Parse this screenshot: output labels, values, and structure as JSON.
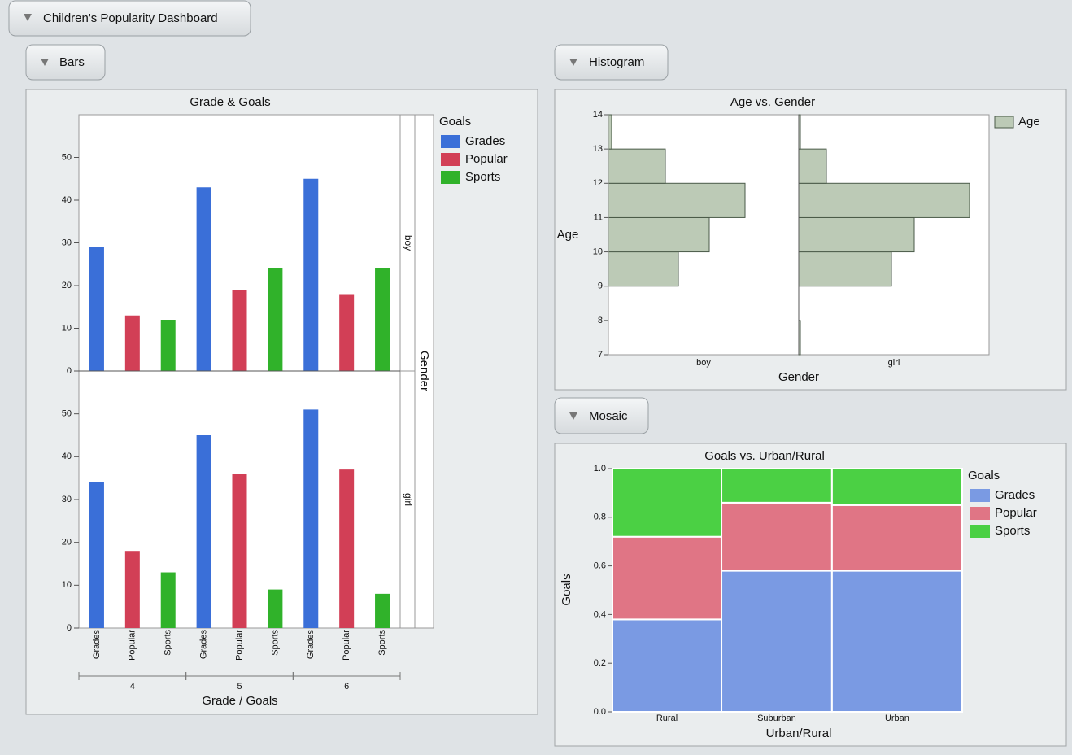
{
  "dashboard": {
    "title": "Children's Popularity Dashboard"
  },
  "sections": [
    "Bars",
    "Histogram",
    "Mosaic"
  ],
  "chart_data": [
    {
      "type": "bar",
      "title": "Grade & Goals",
      "xlabel": "Grade / Goals",
      "facet_label": "Gender",
      "legend_title": "Goals",
      "groups": [
        "4",
        "5",
        "6"
      ],
      "series": [
        {
          "name": "Grades",
          "color": "#3a6fd8"
        },
        {
          "name": "Popular",
          "color": "#d23f56"
        },
        {
          "name": "Sports",
          "color": "#30b22a"
        }
      ],
      "panels": [
        {
          "label": "boy",
          "values": [
            [
              29,
              43,
              45
            ],
            [
              13,
              19,
              18
            ],
            [
              12,
              24,
              24
            ]
          ]
        },
        {
          "label": "girl",
          "values": [
            [
              34,
              45,
              51
            ],
            [
              18,
              36,
              37
            ],
            [
              13,
              9,
              8
            ]
          ]
        }
      ],
      "ylim": [
        0,
        60
      ],
      "yticks": [
        0,
        10,
        20,
        30,
        40,
        50
      ]
    },
    {
      "type": "histogram",
      "title": "Age vs. Gender",
      "xlabel": "Gender",
      "ylabel": "Age",
      "legend_title": "Age",
      "color": "#bccab6",
      "bins": [
        7,
        8,
        9,
        10,
        11,
        12,
        13,
        14
      ],
      "panels": [
        {
          "label": "boy",
          "counts": [
            0,
            0,
            43,
            62,
            84,
            35,
            2
          ]
        },
        {
          "label": "girl",
          "counts": [
            1,
            0,
            57,
            71,
            105,
            17,
            1
          ]
        }
      ],
      "xlim": [
        0,
        117
      ],
      "ylim": [
        7,
        14
      ],
      "yticks": [
        7,
        8,
        9,
        10,
        11,
        12,
        13,
        14
      ]
    },
    {
      "type": "mosaic",
      "title": "Goals vs. Urban/Rural",
      "xlabel": "Urban/Rural",
      "ylabel": "Goals",
      "legend_title": "Goals",
      "categories": [
        "Rural",
        "Suburban",
        "Urban"
      ],
      "counts": [
        149,
        151,
        178
      ],
      "series": [
        {
          "name": "Grades",
          "color": "#7a9ae3",
          "values": [
            0.38,
            0.58,
            0.58
          ]
        },
        {
          "name": "Popular",
          "color": "#e07585",
          "values": [
            0.34,
            0.28,
            0.27
          ]
        },
        {
          "name": "Sports",
          "color": "#4bd044",
          "values": [
            0.28,
            0.14,
            0.15
          ]
        }
      ],
      "ylim": [
        0,
        1
      ],
      "yticks": [
        {
          "value": 0,
          "label": "0.0"
        },
        0.2,
        0.4,
        0.6,
        0.8,
        {
          "value": 1,
          "label": "1.0"
        }
      ]
    }
  ]
}
